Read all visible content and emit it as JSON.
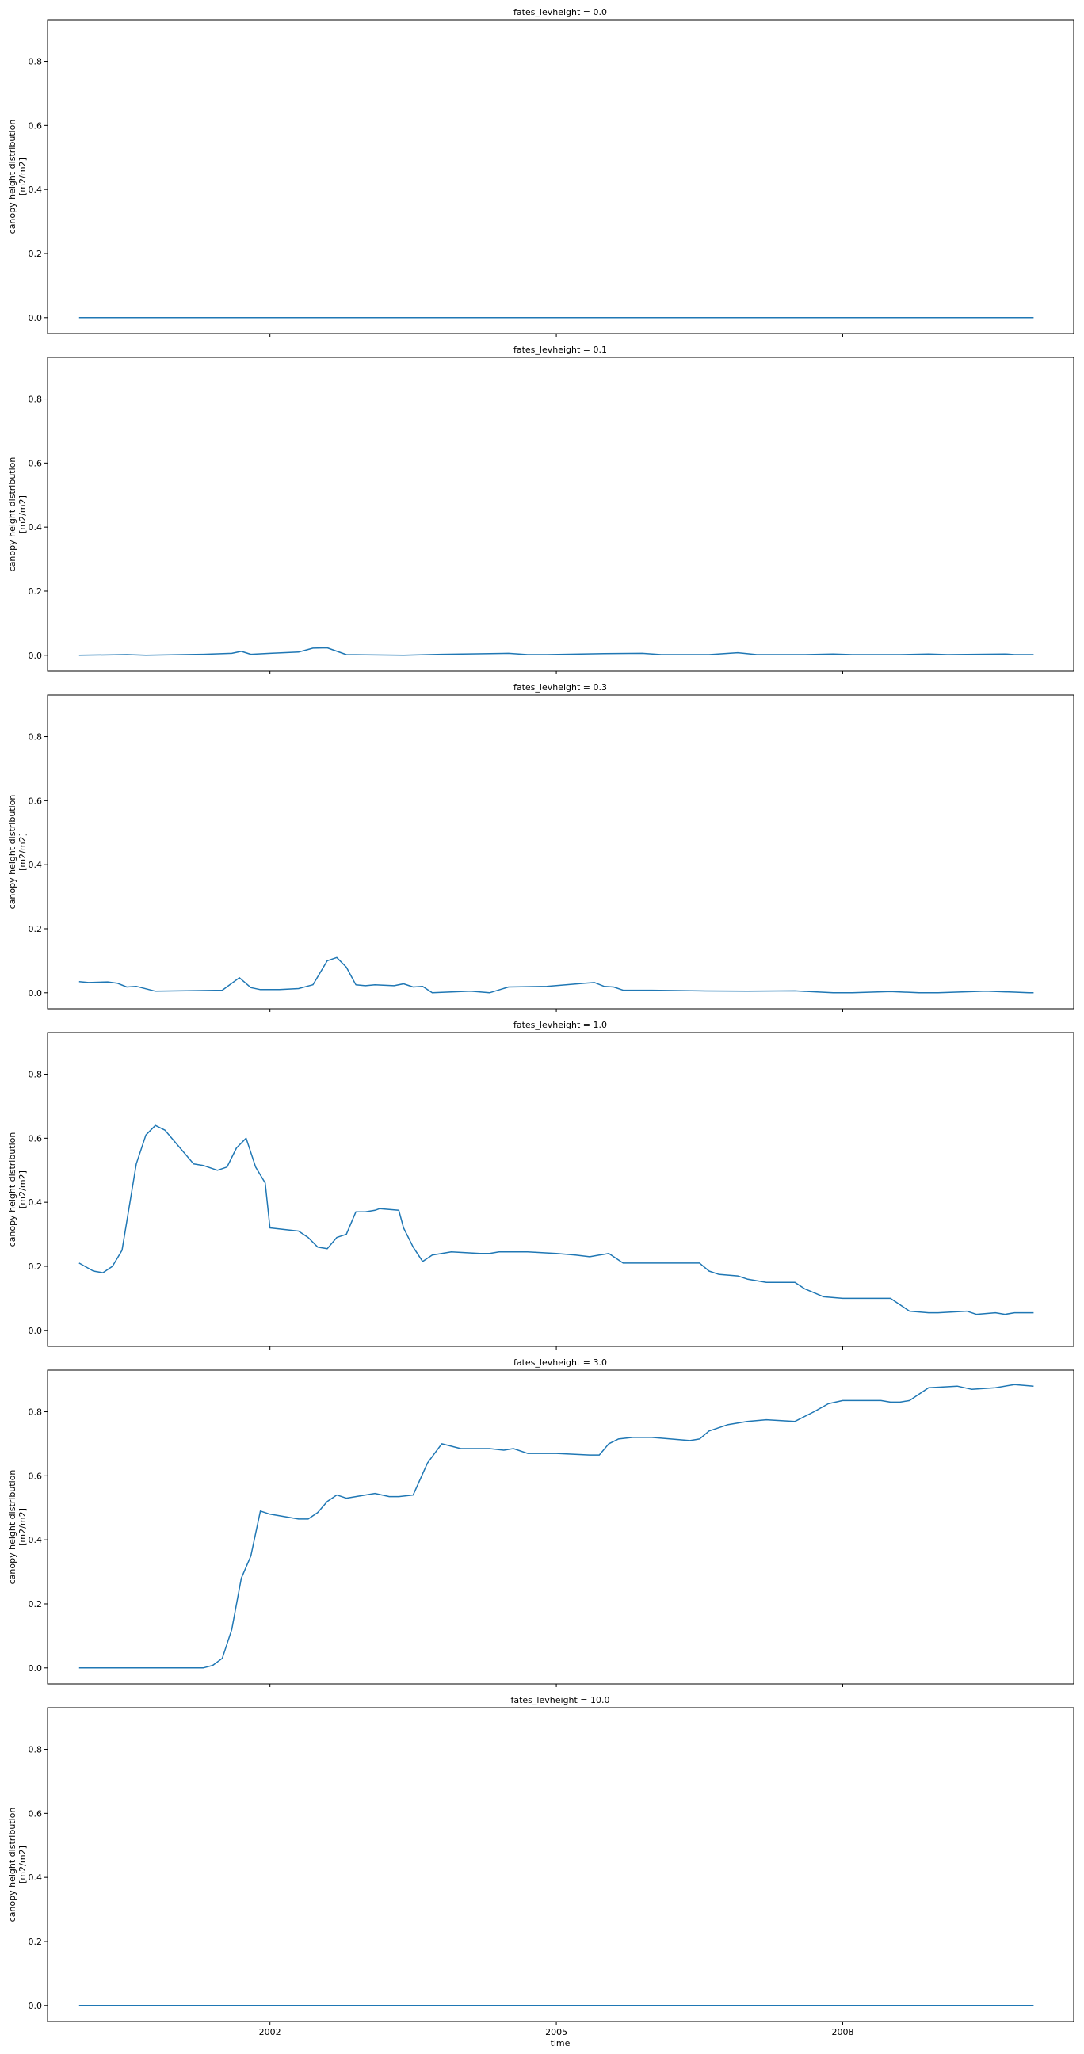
{
  "colors": {
    "line": "#1f77b4",
    "axes": "#000000",
    "background": "#ffffff"
  },
  "xaxis": {
    "label": "time",
    "ticks": [
      "2002",
      "2005",
      "2008"
    ]
  },
  "chart_data": [
    {
      "type": "line",
      "title": "fates_levheight = 0.0",
      "ylabel_line1": "canopy height distribution",
      "ylabel_line2": "[m2/m2]",
      "x_range": [
        1999.67,
        2010.42
      ],
      "ylim": [
        -0.05,
        0.93
      ],
      "yticks": [
        "0.0",
        "0.2",
        "0.4",
        "0.6",
        "0.8"
      ],
      "series": [
        {
          "x": [
            2000.0,
            2010.0
          ],
          "y": [
            0.0,
            0.0
          ]
        }
      ]
    },
    {
      "type": "line",
      "title": "fates_levheight = 0.1",
      "ylabel_line1": "canopy height distribution",
      "ylabel_line2": "[m2/m2]",
      "x_range": [
        1999.67,
        2010.42
      ],
      "ylim": [
        -0.05,
        0.93
      ],
      "yticks": [
        "0.0",
        "0.2",
        "0.4",
        "0.6",
        "0.8"
      ],
      "series": [
        {
          "x": [
            2000.0,
            2000.5,
            2000.7,
            2001.3,
            2001.6,
            2001.7,
            2001.8,
            2002.0,
            2002.3,
            2002.45,
            2002.6,
            2002.8,
            2003.4,
            2003.8,
            2004.5,
            2004.7,
            2004.9,
            2005.5,
            2005.9,
            2006.1,
            2006.6,
            2006.9,
            2007.1,
            2007.6,
            2007.9,
            2008.1,
            2008.6,
            2008.9,
            2009.1,
            2009.7,
            2009.8,
            2010.0
          ],
          "y": [
            0.0,
            0.002,
            0.0,
            0.003,
            0.006,
            0.012,
            0.003,
            0.006,
            0.01,
            0.022,
            0.023,
            0.002,
            0.0,
            0.003,
            0.006,
            0.002,
            0.002,
            0.005,
            0.006,
            0.002,
            0.002,
            0.008,
            0.002,
            0.002,
            0.004,
            0.002,
            0.002,
            0.004,
            0.002,
            0.004,
            0.002,
            0.002
          ]
        }
      ]
    },
    {
      "type": "line",
      "title": "fates_levheight = 0.3",
      "ylabel_line1": "canopy height distribution",
      "ylabel_line2": "[m2/m2]",
      "x_range": [
        1999.67,
        2010.42
      ],
      "ylim": [
        -0.05,
        0.93
      ],
      "yticks": [
        "0.0",
        "0.2",
        "0.4",
        "0.6",
        "0.8"
      ],
      "series": [
        {
          "x": [
            2000.0,
            2000.1,
            2000.3,
            2000.4,
            2000.5,
            2000.6,
            2000.8,
            2001.5,
            2001.68,
            2001.8,
            2001.9,
            2002.1,
            2002.3,
            2002.45,
            2002.6,
            2002.7,
            2002.8,
            2002.9,
            2003.0,
            2003.1,
            2003.3,
            2003.4,
            2003.5,
            2003.6,
            2003.7,
            2004.1,
            2004.3,
            2004.5,
            2004.9,
            2005.3,
            2005.4,
            2005.5,
            2005.6,
            2005.7,
            2006.0,
            2006.5,
            2007.0,
            2007.5,
            2007.9,
            2008.1,
            2008.5,
            2008.8,
            2009.0,
            2009.5,
            2009.8,
            2009.95,
            2010.0
          ],
          "y": [
            0.035,
            0.032,
            0.034,
            0.03,
            0.018,
            0.02,
            0.005,
            0.008,
            0.047,
            0.016,
            0.01,
            0.01,
            0.013,
            0.025,
            0.1,
            0.11,
            0.08,
            0.025,
            0.022,
            0.025,
            0.022,
            0.028,
            0.018,
            0.02,
            0.0,
            0.005,
            0.0,
            0.018,
            0.02,
            0.03,
            0.032,
            0.02,
            0.018,
            0.008,
            0.008,
            0.006,
            0.005,
            0.006,
            0.0,
            0.0,
            0.004,
            0.0,
            0.0,
            0.005,
            0.002,
            0.0,
            0.0
          ]
        }
      ]
    },
    {
      "type": "line",
      "title": "fates_levheight = 1.0",
      "ylabel_line1": "canopy height distribution",
      "ylabel_line2": "[m2/m2]",
      "x_range": [
        1999.67,
        2010.42
      ],
      "ylim": [
        -0.05,
        0.93
      ],
      "yticks": [
        "0.0",
        "0.2",
        "0.4",
        "0.6",
        "0.8"
      ],
      "series": [
        {
          "x": [
            2000.0,
            2000.15,
            2000.25,
            2000.35,
            2000.45,
            2000.6,
            2000.7,
            2000.8,
            2000.9,
            2001.0,
            2001.2,
            2001.3,
            2001.45,
            2001.55,
            2001.65,
            2001.75,
            2001.85,
            2001.95,
            2002.0,
            2002.3,
            2002.4,
            2002.5,
            2002.6,
            2002.7,
            2002.8,
            2002.9,
            2003.0,
            2003.1,
            2003.15,
            2003.35,
            2003.4,
            2003.5,
            2003.6,
            2003.7,
            2003.9,
            2004.2,
            2004.3,
            2004.4,
            2004.7,
            2005.0,
            2005.2,
            2005.35,
            2005.45,
            2005.55,
            2005.7,
            2006.0,
            2006.5,
            2006.6,
            2006.7,
            2006.9,
            2007.0,
            2007.2,
            2007.4,
            2007.5,
            2007.6,
            2007.8,
            2008.0,
            2008.4,
            2008.5,
            2008.6,
            2008.7,
            2008.9,
            2009.0,
            2009.3,
            2009.4,
            2009.6,
            2009.7,
            2009.8,
            2010.0
          ],
          "y": [
            0.21,
            0.185,
            0.18,
            0.2,
            0.25,
            0.52,
            0.61,
            0.64,
            0.625,
            0.59,
            0.52,
            0.515,
            0.5,
            0.51,
            0.57,
            0.6,
            0.51,
            0.46,
            0.32,
            0.31,
            0.29,
            0.26,
            0.255,
            0.29,
            0.3,
            0.37,
            0.37,
            0.375,
            0.38,
            0.375,
            0.32,
            0.26,
            0.215,
            0.235,
            0.245,
            0.24,
            0.24,
            0.245,
            0.245,
            0.24,
            0.235,
            0.23,
            0.235,
            0.24,
            0.21,
            0.21,
            0.21,
            0.185,
            0.175,
            0.17,
            0.16,
            0.15,
            0.15,
            0.15,
            0.13,
            0.105,
            0.1,
            0.1,
            0.1,
            0.08,
            0.06,
            0.055,
            0.055,
            0.06,
            0.05,
            0.055,
            0.05,
            0.055,
            0.055
          ]
        }
      ]
    },
    {
      "type": "line",
      "title": "fates_levheight = 3.0",
      "ylabel_line1": "canopy height distribution",
      "ylabel_line2": "[m2/m2]",
      "x_range": [
        1999.67,
        2010.42
      ],
      "ylim": [
        -0.05,
        0.93
      ],
      "yticks": [
        "0.0",
        "0.2",
        "0.4",
        "0.6",
        "0.8"
      ],
      "series": [
        {
          "x": [
            2000.0,
            2001.3,
            2001.4,
            2001.5,
            2001.6,
            2001.7,
            2001.8,
            2001.9,
            2002.0,
            2002.3,
            2002.4,
            2002.5,
            2002.6,
            2002.7,
            2002.8,
            2003.0,
            2003.1,
            2003.25,
            2003.35,
            2003.5,
            2003.65,
            2003.8,
            2004.0,
            2004.3,
            2004.45,
            2004.55,
            2004.7,
            2005.0,
            2005.35,
            2005.45,
            2005.55,
            2005.65,
            2005.8,
            2006.0,
            2006.4,
            2006.5,
            2006.6,
            2006.8,
            2007.0,
            2007.2,
            2007.5,
            2007.7,
            2007.85,
            2008.0,
            2008.4,
            2008.5,
            2008.6,
            2008.7,
            2008.9,
            2009.2,
            2009.35,
            2009.6,
            2009.8,
            2010.0
          ],
          "y": [
            0.0,
            0.0,
            0.008,
            0.03,
            0.12,
            0.28,
            0.35,
            0.49,
            0.48,
            0.465,
            0.465,
            0.485,
            0.52,
            0.54,
            0.53,
            0.54,
            0.545,
            0.535,
            0.535,
            0.54,
            0.64,
            0.7,
            0.685,
            0.685,
            0.68,
            0.685,
            0.67,
            0.67,
            0.665,
            0.665,
            0.7,
            0.715,
            0.72,
            0.72,
            0.71,
            0.715,
            0.74,
            0.76,
            0.77,
            0.775,
            0.77,
            0.8,
            0.825,
            0.835,
            0.835,
            0.83,
            0.83,
            0.835,
            0.875,
            0.88,
            0.87,
            0.875,
            0.885,
            0.88
          ]
        }
      ]
    },
    {
      "type": "line",
      "title": "fates_levheight = 10.0",
      "ylabel_line1": "canopy height distribution",
      "ylabel_line2": "[m2/m2]",
      "x_range": [
        1999.67,
        2010.42
      ],
      "ylim": [
        -0.05,
        0.93
      ],
      "yticks": [
        "0.0",
        "0.2",
        "0.4",
        "0.6",
        "0.8"
      ],
      "series": [
        {
          "x": [
            2000.0,
            2010.0
          ],
          "y": [
            0.0,
            0.0
          ]
        }
      ]
    }
  ]
}
